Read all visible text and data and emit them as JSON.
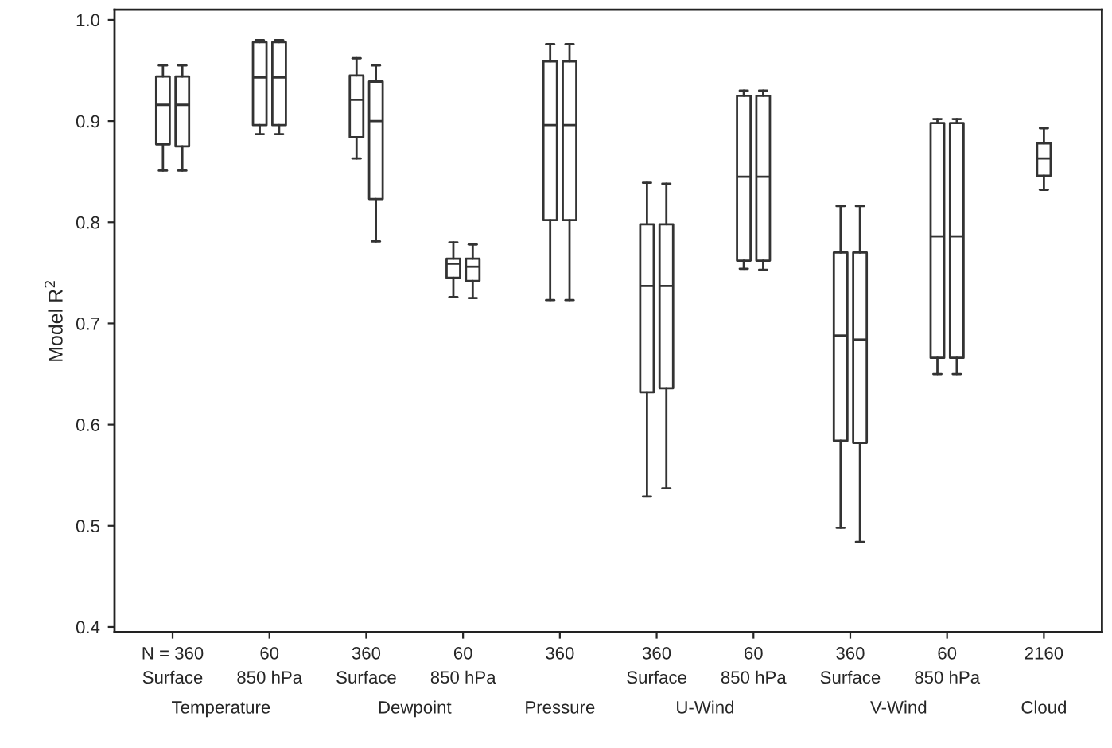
{
  "chart_data": {
    "type": "box",
    "ylabel": "Model R$^{2}$",
    "categories": [
      "N = 360\nSurface",
      "60\n850 hPa",
      "360\nSurface",
      "60\n850 hPa",
      "360",
      "360\nSurface",
      "60\n850 hPa",
      "360\nSurface",
      "60\n850 hPa",
      "2160"
    ],
    "annotations": [
      "Temperature",
      "Dewpoint",
      "Pressure",
      "U-Wind",
      "V-Wind",
      "Cloud"
    ],
    "ylim": [
      0.395,
      1.01
    ],
    "yticks": [
      0.4,
      0.5,
      0.6,
      0.7,
      0.8,
      0.9,
      {
        "value": 1,
        "label": "1.0"
      }
    ],
    "grid": false,
    "series": [
      {
        "color": "#333333",
        "boxes": [
          {
            "low": 0.851,
            "q1": 0.877,
            "median": 0.916,
            "q3": 0.944,
            "high": 0.955
          },
          {
            "low": 0.887,
            "q1": 0.896,
            "median": 0.943,
            "q3": 0.978,
            "high": 0.98
          },
          {
            "low": 0.863,
            "q1": 0.884,
            "median": 0.921,
            "q3": 0.945,
            "high": 0.962
          },
          {
            "low": 0.726,
            "q1": 0.745,
            "median": 0.759,
            "q3": 0.764,
            "high": 0.78
          },
          {
            "low": 0.723,
            "q1": 0.802,
            "median": 0.896,
            "q3": 0.959,
            "high": 0.976
          },
          {
            "low": 0.529,
            "q1": 0.632,
            "median": 0.737,
            "q3": 0.798,
            "high": 0.839
          },
          {
            "low": 0.754,
            "q1": 0.762,
            "median": 0.845,
            "q3": 0.925,
            "high": 0.93
          },
          {
            "low": 0.498,
            "q1": 0.584,
            "median": 0.688,
            "q3": 0.77,
            "high": 0.816
          },
          {
            "low": 0.65,
            "q1": 0.666,
            "median": 0.786,
            "q3": 0.898,
            "high": 0.902
          },
          {
            "low": 0.832,
            "q1": 0.846,
            "median": 0.863,
            "q3": 0.878,
            "high": 0.893
          }
        ]
      },
      {
        "color": "#333333",
        "boxes": [
          {
            "low": 0.851,
            "q1": 0.875,
            "median": 0.916,
            "q3": 0.944,
            "high": 0.955
          },
          {
            "low": 0.887,
            "q1": 0.896,
            "median": 0.943,
            "q3": 0.978,
            "high": 0.98
          },
          {
            "low": 0.781,
            "q1": 0.823,
            "median": 0.9,
            "q3": 0.939,
            "high": 0.955
          },
          {
            "low": 0.725,
            "q1": 0.742,
            "median": 0.756,
            "q3": 0.764,
            "high": 0.778
          },
          {
            "low": 0.723,
            "q1": 0.802,
            "median": 0.896,
            "q3": 0.959,
            "high": 0.976
          },
          {
            "low": 0.537,
            "q1": 0.636,
            "median": 0.737,
            "q3": 0.798,
            "high": 0.838
          },
          {
            "low": 0.753,
            "q1": 0.762,
            "median": 0.845,
            "q3": 0.925,
            "high": 0.93
          },
          {
            "low": 0.484,
            "q1": 0.582,
            "median": 0.684,
            "q3": 0.77,
            "high": 0.816
          },
          {
            "low": 0.65,
            "q1": 0.666,
            "median": 0.786,
            "q3": 0.898,
            "high": 0.902
          },
          null
        ]
      }
    ]
  }
}
